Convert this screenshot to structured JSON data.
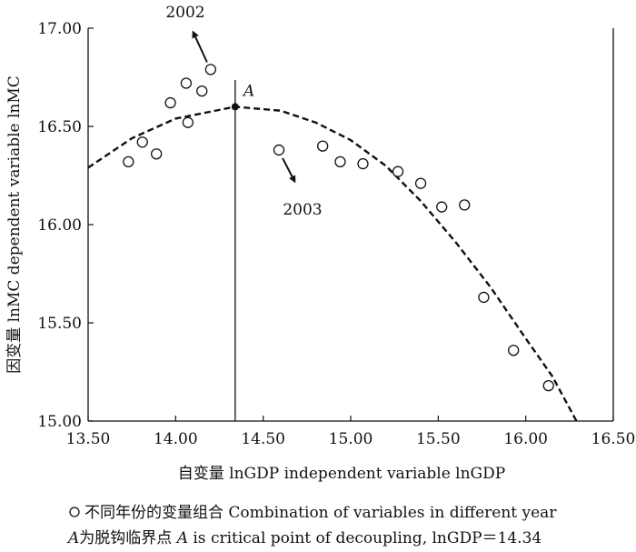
{
  "chart_data": {
    "type": "scatter",
    "xlabel": "自变量 lnGDP independent variable lnGDP",
    "ylabel": "因变量 lnMC dependent variable lnMC",
    "xlim": [
      13.5,
      16.5
    ],
    "ylim": [
      15.0,
      17.0
    ],
    "x_ticks": [
      13.5,
      14.0,
      14.5,
      15.0,
      15.5,
      16.0,
      16.5
    ],
    "x_tick_labels": [
      "13.50",
      "14.00",
      "14.50",
      "15.00",
      "15.50",
      "16.00",
      "16.50"
    ],
    "y_ticks": [
      15.0,
      15.5,
      16.0,
      16.5,
      17.0
    ],
    "y_tick_labels": [
      "15.00",
      "15.50",
      "16.00",
      "16.50",
      "17.00"
    ],
    "grid": false,
    "series": [
      {
        "marker": "open-circle",
        "points": [
          {
            "x": 13.73,
            "y": 16.32
          },
          {
            "x": 13.81,
            "y": 16.42
          },
          {
            "x": 13.89,
            "y": 16.36
          },
          {
            "x": 13.97,
            "y": 16.62
          },
          {
            "x": 14.06,
            "y": 16.72
          },
          {
            "x": 14.07,
            "y": 16.52
          },
          {
            "x": 14.15,
            "y": 16.68
          },
          {
            "x": 14.2,
            "y": 16.79
          },
          {
            "x": 14.59,
            "y": 16.38
          },
          {
            "x": 14.84,
            "y": 16.4
          },
          {
            "x": 14.94,
            "y": 16.32
          },
          {
            "x": 15.07,
            "y": 16.31
          },
          {
            "x": 15.27,
            "y": 16.27
          },
          {
            "x": 15.4,
            "y": 16.21
          },
          {
            "x": 15.52,
            "y": 16.09
          },
          {
            "x": 15.65,
            "y": 16.1
          },
          {
            "x": 15.76,
            "y": 15.63
          },
          {
            "x": 15.93,
            "y": 15.36
          },
          {
            "x": 16.13,
            "y": 15.18
          }
        ]
      },
      {
        "style": "dashed",
        "points": [
          {
            "x": 13.5,
            "y": 16.29
          },
          {
            "x": 13.75,
            "y": 16.44
          },
          {
            "x": 14.0,
            "y": 16.54
          },
          {
            "x": 14.34,
            "y": 16.6
          },
          {
            "x": 14.6,
            "y": 16.58
          },
          {
            "x": 14.8,
            "y": 16.52
          },
          {
            "x": 15.0,
            "y": 16.43
          },
          {
            "x": 15.2,
            "y": 16.3
          },
          {
            "x": 15.4,
            "y": 16.12
          },
          {
            "x": 15.6,
            "y": 15.91
          },
          {
            "x": 15.8,
            "y": 15.68
          },
          {
            "x": 16.0,
            "y": 15.42
          },
          {
            "x": 16.15,
            "y": 15.23
          },
          {
            "x": 16.29,
            "y": 15.0
          }
        ]
      }
    ],
    "critical_point": {
      "label": "A",
      "x": 14.34,
      "y": 16.6
    },
    "annotations": [
      {
        "text": "2002",
        "from": {
          "x": 14.2,
          "y": 16.79
        },
        "arrow_to": {
          "x": 14.1,
          "y": 16.98
        }
      },
      {
        "text": "2003",
        "from": {
          "x": 14.59,
          "y": 16.38
        },
        "arrow_to": {
          "x": 14.68,
          "y": 16.22
        }
      }
    ],
    "legend": {
      "line1_text": "不同年份的变量组合 Combination of variables in different year",
      "line2_a": "A",
      "line2_mid": "为脱钩临界点 ",
      "line2_a2": "A",
      "line2_rest": " is critical point of decoupling, lnGDP＝14.34"
    }
  }
}
